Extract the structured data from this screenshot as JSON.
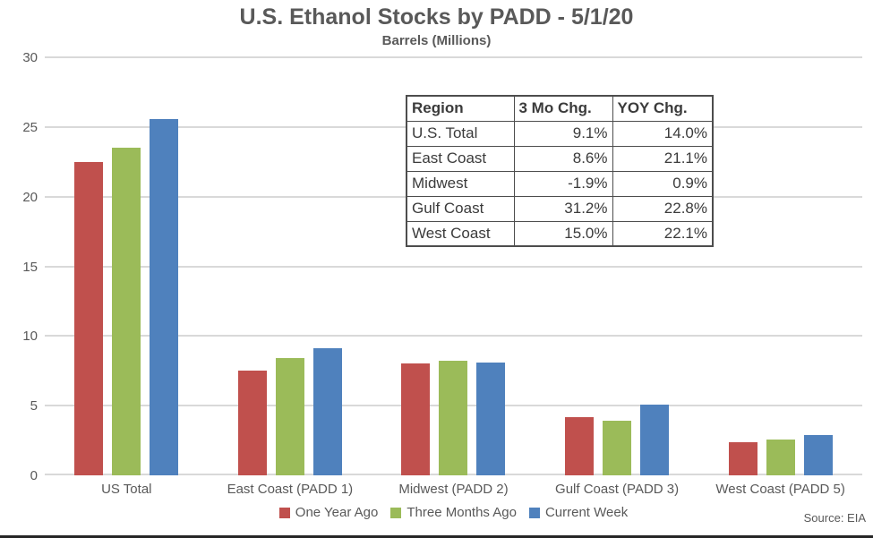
{
  "chart_data": {
    "type": "bar",
    "title": "U.S. Ethanol Stocks by PADD - 5/1/20",
    "subtitle": "Barrels (Millions)",
    "categories": [
      "US Total",
      "East Coast (PADD 1)",
      "Midwest (PADD 2)",
      "Gulf Coast (PADD 3)",
      "West Coast (PADD 5)"
    ],
    "series": [
      {
        "name": "One Year Ago",
        "color": "#C0504D",
        "values": [
          22.5,
          7.5,
          8.0,
          4.2,
          2.4
        ]
      },
      {
        "name": "Three Months Ago",
        "color": "#9BBB59",
        "values": [
          23.5,
          8.4,
          8.2,
          3.9,
          2.6
        ]
      },
      {
        "name": "Current Week",
        "color": "#4F81BD",
        "values": [
          25.6,
          9.1,
          8.1,
          5.1,
          2.9
        ]
      }
    ],
    "ylim": [
      0,
      30
    ],
    "ytick_step": 5,
    "grid": true,
    "gridline_color": "#D9D9D9",
    "legend_position": "bottom",
    "source": "Source: EIA"
  },
  "stats_table": {
    "headers": [
      "Region",
      "3 Mo Chg.",
      "YOY Chg."
    ],
    "rows": [
      [
        "U.S. Total",
        "9.1%",
        "14.0%"
      ],
      [
        "East Coast",
        "8.6%",
        "21.1%"
      ],
      [
        "Midwest",
        "-1.9%",
        "0.9%"
      ],
      [
        "Gulf Coast",
        "31.2%",
        "22.8%"
      ],
      [
        "West Coast",
        "15.0%",
        "22.1%"
      ]
    ]
  }
}
